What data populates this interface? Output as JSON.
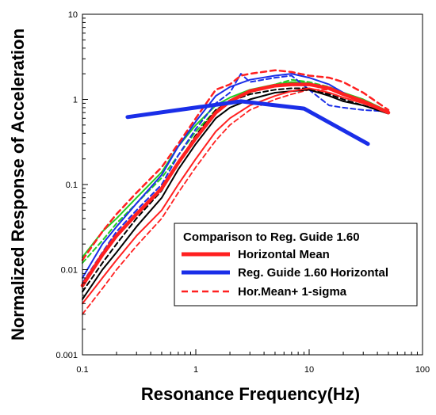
{
  "chart_data": {
    "type": "line",
    "title": "",
    "xlabel": "Resonance Frequency(Hz)",
    "ylabel": "Normalized Response of Acceleration",
    "x_scale": "log",
    "y_scale": "log",
    "xlim": [
      0.1,
      100
    ],
    "ylim": [
      0.001,
      10
    ],
    "x_ticks": [
      "0.1",
      "1",
      "10",
      "100"
    ],
    "y_ticks": [
      "0.001",
      "0.01",
      "0.1",
      "1",
      "10"
    ],
    "grid": false,
    "legend": {
      "title": "Comparison to Reg. Guide 1.60",
      "placement": "lower-right",
      "entries": [
        {
          "label": "Horizontal Mean",
          "color": "#ff2020",
          "style": "solid-thick"
        },
        {
          "label": "Reg. Guide 1.60 Horizontal",
          "color": "#1a2ee8",
          "style": "solid-thick"
        },
        {
          "label": "Hor.Mean+ 1-sigma",
          "color": "#ff2020",
          "style": "dashed"
        }
      ]
    },
    "series": [
      {
        "name": "Horizontal Mean",
        "color": "#ff2020",
        "width": 4.5,
        "dash": "",
        "x": [
          0.1,
          0.15,
          0.2,
          0.3,
          0.5,
          0.7,
          1,
          1.5,
          2,
          3,
          5,
          7,
          10,
          15,
          20,
          30,
          50
        ],
        "y": [
          0.0065,
          0.015,
          0.025,
          0.045,
          0.09,
          0.18,
          0.35,
          0.7,
          0.95,
          1.25,
          1.45,
          1.5,
          1.5,
          1.35,
          1.15,
          0.95,
          0.7
        ]
      },
      {
        "name": "Reg. Guide 1.60 Horizontal",
        "color": "#1a2ee8",
        "width": 5,
        "dash": "",
        "x": [
          0.25,
          2.5,
          9,
          33
        ],
        "y": [
          0.62,
          0.95,
          0.78,
          0.3
        ]
      },
      {
        "name": "Hor.Mean+ 1-sigma",
        "color": "#ff2020",
        "width": 2.5,
        "dash": "7,5",
        "x": [
          0.1,
          0.15,
          0.2,
          0.3,
          0.5,
          0.7,
          1,
          1.5,
          2,
          2.5,
          3,
          5,
          7,
          10,
          15,
          20,
          30,
          50
        ],
        "y": [
          0.013,
          0.028,
          0.045,
          0.08,
          0.16,
          0.3,
          0.6,
          1.3,
          1.5,
          1.9,
          2.0,
          2.2,
          2.1,
          1.9,
          1.8,
          1.6,
          1.2,
          0.75
        ]
      },
      {
        "color": "#22cc22",
        "width": 2,
        "dash": "",
        "x": [
          0.1,
          0.15,
          0.2,
          0.3,
          0.5,
          0.7,
          1,
          1.5,
          2,
          3,
          5,
          7,
          10,
          15,
          20,
          30,
          50
        ],
        "y": [
          0.014,
          0.028,
          0.04,
          0.07,
          0.14,
          0.28,
          0.5,
          0.85,
          1.05,
          1.3,
          1.5,
          1.6,
          1.55,
          1.35,
          1.2,
          1.0,
          0.72
        ]
      },
      {
        "color": "#22cc22",
        "width": 2,
        "dash": "6,4",
        "x": [
          0.1,
          0.15,
          0.2,
          0.3,
          0.5,
          0.7,
          1,
          1.5,
          2,
          3,
          5,
          7,
          10,
          15,
          20,
          30,
          50
        ],
        "y": [
          0.012,
          0.022,
          0.035,
          0.06,
          0.12,
          0.22,
          0.42,
          0.75,
          0.95,
          1.2,
          1.5,
          1.7,
          1.6,
          1.4,
          1.2,
          0.95,
          0.7
        ]
      },
      {
        "color": "#1a2ee8",
        "width": 2,
        "dash": "",
        "x": [
          0.1,
          0.15,
          0.2,
          0.3,
          0.5,
          0.7,
          1,
          1.5,
          2,
          3,
          5,
          7,
          10,
          15,
          20,
          30,
          50
        ],
        "y": [
          0.008,
          0.02,
          0.032,
          0.06,
          0.13,
          0.28,
          0.55,
          1.1,
          1.4,
          1.7,
          1.9,
          2.0,
          1.8,
          1.5,
          1.2,
          0.9,
          0.72
        ]
      },
      {
        "color": "#1a2ee8",
        "width": 2,
        "dash": "6,4",
        "x": [
          0.1,
          0.15,
          0.2,
          0.3,
          0.5,
          0.7,
          1,
          1.5,
          2,
          2.5,
          3,
          5,
          7,
          10,
          15,
          20,
          30,
          50
        ],
        "y": [
          0.007,
          0.016,
          0.028,
          0.05,
          0.1,
          0.22,
          0.45,
          0.9,
          1.2,
          2.0,
          1.6,
          1.8,
          1.9,
          1.3,
          0.85,
          0.8,
          0.75,
          0.72
        ]
      },
      {
        "color": "#000000",
        "width": 2,
        "dash": "",
        "x": [
          0.1,
          0.15,
          0.2,
          0.3,
          0.5,
          0.7,
          1,
          1.5,
          2,
          3,
          5,
          7,
          10,
          15,
          20,
          30,
          50
        ],
        "y": [
          0.0045,
          0.01,
          0.016,
          0.032,
          0.07,
          0.15,
          0.3,
          0.6,
          0.8,
          1.0,
          1.2,
          1.25,
          1.3,
          1.1,
          0.95,
          0.85,
          0.68
        ]
      },
      {
        "color": "#000000",
        "width": 2,
        "dash": "6,4",
        "x": [
          0.1,
          0.15,
          0.2,
          0.3,
          0.5,
          0.7,
          1,
          1.5,
          2,
          3,
          5,
          7,
          10,
          15,
          20,
          30,
          50
        ],
        "y": [
          0.0055,
          0.012,
          0.02,
          0.04,
          0.085,
          0.18,
          0.38,
          0.75,
          0.95,
          1.15,
          1.3,
          1.35,
          1.35,
          1.15,
          1.0,
          0.85,
          0.7
        ]
      },
      {
        "color": "#ff2020",
        "width": 2,
        "dash": "",
        "x": [
          0.1,
          0.15,
          0.2,
          0.3,
          0.5,
          0.7,
          1,
          1.5,
          2,
          3,
          5,
          7,
          10,
          15,
          20,
          30,
          50
        ],
        "y": [
          0.004,
          0.008,
          0.013,
          0.025,
          0.05,
          0.1,
          0.2,
          0.42,
          0.6,
          0.85,
          1.1,
          1.25,
          1.35,
          1.2,
          1.05,
          0.9,
          0.7
        ]
      },
      {
        "color": "#ff2020",
        "width": 1.8,
        "dash": "6,4",
        "x": [
          0.1,
          0.15,
          0.2,
          0.3,
          0.5,
          0.7,
          1,
          1.5,
          2,
          3,
          5,
          7,
          10,
          15,
          20,
          30,
          50
        ],
        "y": [
          0.003,
          0.006,
          0.01,
          0.019,
          0.04,
          0.08,
          0.16,
          0.33,
          0.5,
          0.75,
          1.0,
          1.15,
          1.3,
          1.3,
          1.2,
          1.0,
          0.72
        ]
      }
    ]
  }
}
